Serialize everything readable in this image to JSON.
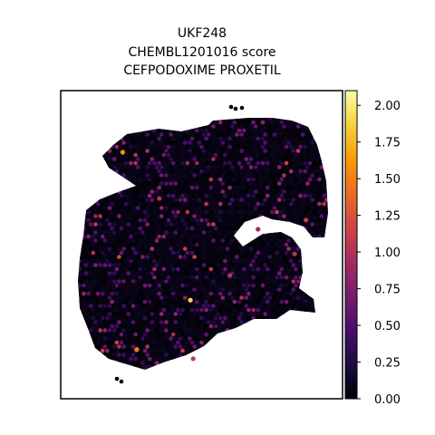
{
  "chart_data": {
    "type": "scatter",
    "title_lines": [
      "UKF248",
      "CHEMBL1201016 score",
      "CEFPODOXIME PROXETIL"
    ],
    "xlabel": "",
    "ylabel": "",
    "grid": false,
    "colormap": "inferno",
    "colorbar": {
      "range": [
        0.0,
        2.1
      ],
      "ticks": [
        0.0,
        0.25,
        0.5,
        0.75,
        1.0,
        1.25,
        1.5,
        1.75,
        2.0
      ],
      "tick_labels": [
        "0.00",
        "0.25",
        "0.50",
        "0.75",
        "1.00",
        "1.25",
        "1.50",
        "1.75",
        "2.00"
      ]
    },
    "colormap_stops": [
      "#000004",
      "#1b0c41",
      "#4a0c6b",
      "#781c6d",
      "#a52c60",
      "#cf4446",
      "#ed6925",
      "#fb9b06",
      "#f7d13d",
      "#fcffa4"
    ],
    "point_summary": {
      "typical_value": 0.05,
      "highlighted_points": [
        {
          "x": 0.22,
          "y": 0.8,
          "value": 1.6
        },
        {
          "x": 0.46,
          "y": 0.32,
          "value": 1.9
        },
        {
          "x": 0.27,
          "y": 0.16,
          "value": 1.5
        },
        {
          "x": 0.6,
          "y": 0.4,
          "value": 1.0
        },
        {
          "x": 0.47,
          "y": 0.13,
          "value": 1.1
        },
        {
          "x": 0.7,
          "y": 0.55,
          "value": 0.9
        },
        {
          "x": 0.83,
          "y": 0.47,
          "value": 1.0
        },
        {
          "x": 0.87,
          "y": 0.58,
          "value": 1.1
        },
        {
          "x": 0.35,
          "y": 0.65,
          "value": 1.0
        }
      ]
    }
  }
}
